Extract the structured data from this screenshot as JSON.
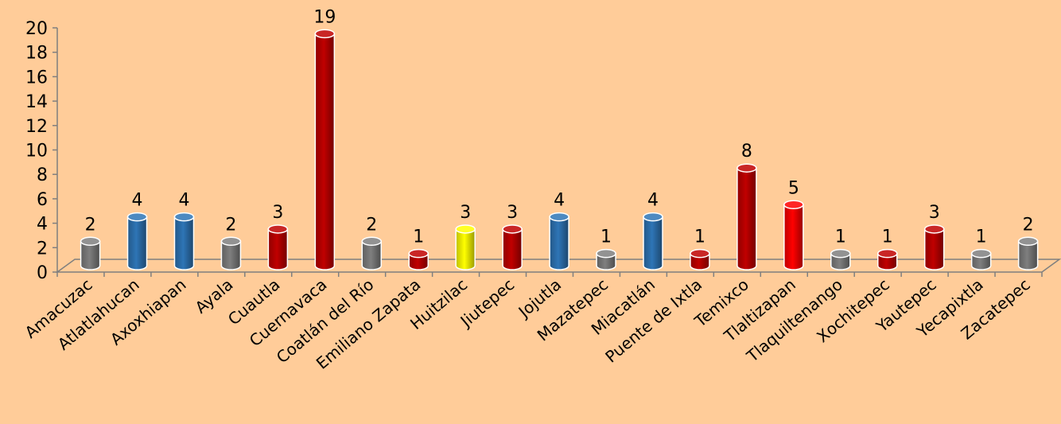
{
  "chart_data": {
    "type": "bar",
    "title": "",
    "xlabel": "",
    "ylabel": "",
    "ylim": [
      0,
      20
    ],
    "yticks": [
      0,
      2,
      4,
      6,
      8,
      10,
      12,
      14,
      16,
      18,
      20
    ],
    "grid": false,
    "legend": "none",
    "three_d": true,
    "categories": [
      "Amacuzac",
      "Atlatlahucan",
      "Axoxhiapan",
      "Ayala",
      "Cuautla",
      "Cuernavaca",
      "Coatlán del Río",
      "Emiliano Zapata",
      "Huitzilac",
      "Jiutepec",
      "Jojutla",
      "Mazatepec",
      "Miacatlán",
      "Puente de Ixtla",
      "Temixco",
      "Tlaltizapan",
      "Tlaquiltenango",
      "Xochitepec",
      "Yautepec",
      "Yecapixtla",
      "Zacatepec"
    ],
    "values": [
      2,
      4,
      4,
      2,
      3,
      19,
      2,
      1,
      3,
      3,
      4,
      1,
      4,
      1,
      8,
      5,
      1,
      1,
      3,
      1,
      2
    ],
    "data_labels": [
      "2",
      "4",
      "4",
      "2",
      "3",
      "19",
      "2",
      "1",
      "3",
      "3",
      "4",
      "1",
      "4",
      "1",
      "8",
      "5",
      "1",
      "1",
      "3",
      "1",
      "2"
    ],
    "bar_colors": [
      "#7F7F7F",
      "#2E75B6",
      "#2E75B6",
      "#7F7F7F",
      "#C00000",
      "#C00000",
      "#7F7F7F",
      "#C00000",
      "#FFFF00",
      "#C00000",
      "#2E75B6",
      "#7F7F7F",
      "#2E75B6",
      "#C00000",
      "#C00000",
      "#FF0000",
      "#7F7F7F",
      "#C00000",
      "#C00000",
      "#7F7F7F",
      "#7F7F7F"
    ]
  },
  "colors": {
    "background": "#FFCC99",
    "axis": "#7F7F7F"
  }
}
